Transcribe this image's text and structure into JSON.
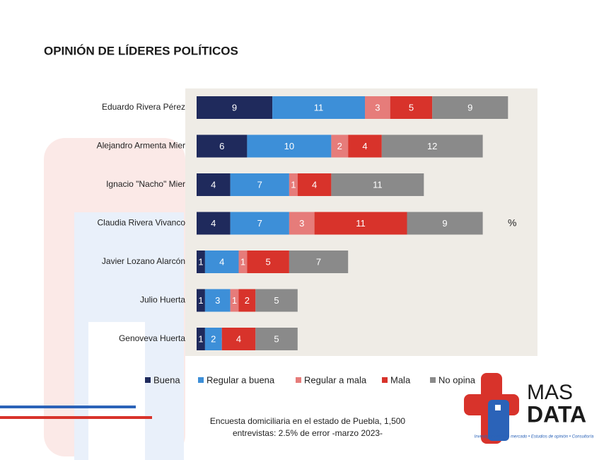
{
  "chart_data": {
    "type": "bar",
    "orientation": "horizontal",
    "stacked": true,
    "title": "OPINIÓN DE LÍDERES POLÍTICOS",
    "categories": [
      "Eduardo Rivera Pérez",
      "Alejandro Armenta Mier",
      "Ignacio \"Nacho\" Mier",
      "Claudia Rivera Vivanco",
      "Javier Lozano Alarcón",
      "Julio Huerta",
      "Genoveva Huerta"
    ],
    "series": [
      {
        "name": "Buena",
        "color": "#1f2a5c",
        "values": [
          9,
          6,
          4,
          4,
          1,
          1,
          1
        ]
      },
      {
        "name": "Regular a buena",
        "color": "#3d8fd8",
        "values": [
          11,
          10,
          7,
          7,
          4,
          3,
          2
        ]
      },
      {
        "name": "Regular a mala",
        "color": "#e67c7a",
        "values": [
          3,
          2,
          1,
          3,
          1,
          1,
          0
        ]
      },
      {
        "name": "Mala",
        "color": "#d8332b",
        "values": [
          5,
          4,
          4,
          11,
          5,
          2,
          4
        ]
      },
      {
        "name": "No opina",
        "color": "#8a8a8a",
        "values": [
          9,
          12,
          11,
          9,
          7,
          5,
          5
        ]
      }
    ],
    "annotation": "%",
    "legend_position": "bottom",
    "note": [
      "Encuesta domiciliaria en el estado de Puebla, 1,500",
      "entrevistas: 2.5% de error -marzo 2023-"
    ]
  },
  "logo": {
    "name": [
      "MAS",
      "DATA"
    ],
    "tagline": "Investigaciones de mercado • Estudios de opinión • Consultoría"
  }
}
